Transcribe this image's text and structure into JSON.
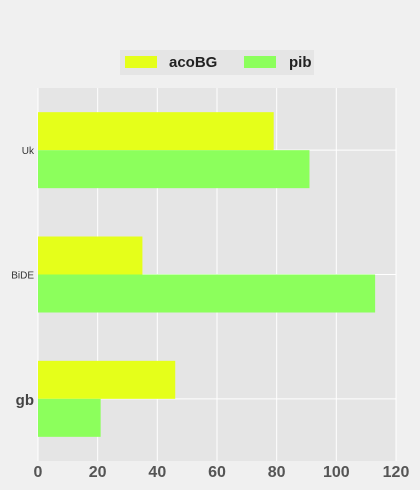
{
  "chart_data": {
    "type": "bar",
    "orientation": "horizontal",
    "categories": [
      "gb",
      "BiDE",
      "Uk"
    ],
    "series": [
      {
        "name": "acoBG",
        "values": [
          46,
          35,
          79
        ],
        "color": "#e5ff1a"
      },
      {
        "name": "pib",
        "values": [
          21,
          113,
          91
        ],
        "color": "#8cff5c"
      }
    ],
    "xlim": [
      0,
      120
    ],
    "xticks": [
      0,
      20,
      40,
      60,
      80,
      100,
      120
    ],
    "category_label_styles": [
      "large-bold",
      "small",
      "small"
    ],
    "grid": true,
    "legend": "top-center",
    "title": "",
    "xlabel": "",
    "ylabel": ""
  }
}
